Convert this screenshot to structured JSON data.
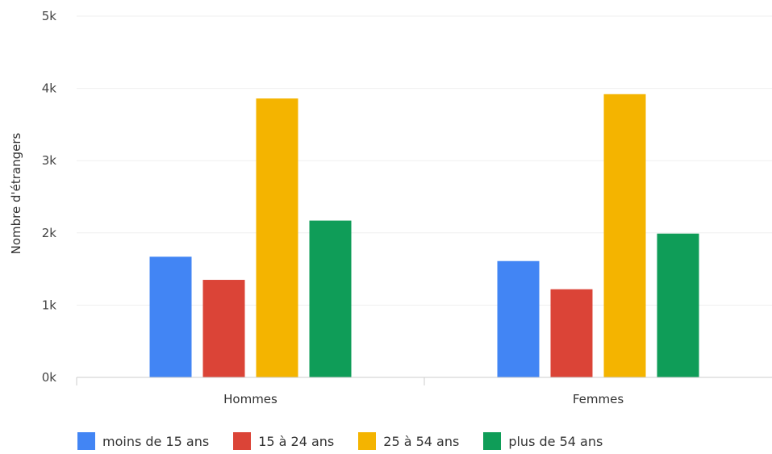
{
  "chart_data": {
    "type": "bar",
    "title": "",
    "xlabel": "",
    "ylabel": "Nombre d'étrangers",
    "categories": [
      "Hommes",
      "Femmes"
    ],
    "series": [
      {
        "name": "moins de 15 ans",
        "color": "#4285f4",
        "values": [
          1670,
          1610
        ]
      },
      {
        "name": "15 à 24 ans",
        "color": "#db4437",
        "values": [
          1350,
          1220
        ]
      },
      {
        "name": "25 à 54 ans",
        "color": "#f4b400",
        "values": [
          3860,
          3920
        ]
      },
      {
        "name": "plus de 54 ans",
        "color": "#0f9d58",
        "values": [
          2170,
          1990
        ]
      }
    ],
    "ylim": [
      0,
      5000
    ],
    "yticks": [
      0,
      1000,
      2000,
      3000,
      4000,
      5000
    ],
    "ytick_labels": [
      "0k",
      "1k",
      "2k",
      "3k",
      "4k",
      "5k"
    ],
    "grid": true,
    "legend_position": "bottom"
  }
}
